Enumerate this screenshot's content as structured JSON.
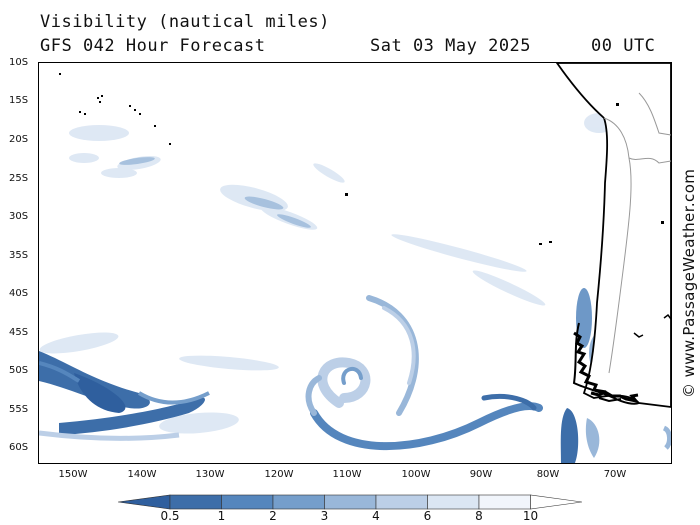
{
  "header": {
    "title": "Visibility (nautical miles)",
    "model": "GFS 042 Hour Forecast",
    "date": "Sat 03 May 2025",
    "time": "00 UTC"
  },
  "credit": "© www.PassageWeather.com",
  "map": {
    "lat_labels": [
      "10S",
      "15S",
      "20S",
      "25S",
      "30S",
      "35S",
      "40S",
      "45S",
      "50S",
      "55S",
      "60S"
    ],
    "lon_labels": [
      "150W",
      "140W",
      "130W",
      "120W",
      "110W",
      "100W",
      "90W",
      "80W",
      "70W"
    ],
    "region": "Southeast Pacific / Chile",
    "features": [
      "low-visibility swirl (low pressure)",
      "coastline of South America",
      "national borders"
    ]
  },
  "legend": {
    "labels": [
      "0.5",
      "1",
      "2",
      "3",
      "4",
      "6",
      "8",
      "10"
    ],
    "colors": [
      "#2f5f9e",
      "#3d6ea9",
      "#5586bd",
      "#759ecb",
      "#99b7d9",
      "#bccfe7",
      "#dbe6f3",
      "#f1f5fb",
      "#ffffff"
    ]
  }
}
